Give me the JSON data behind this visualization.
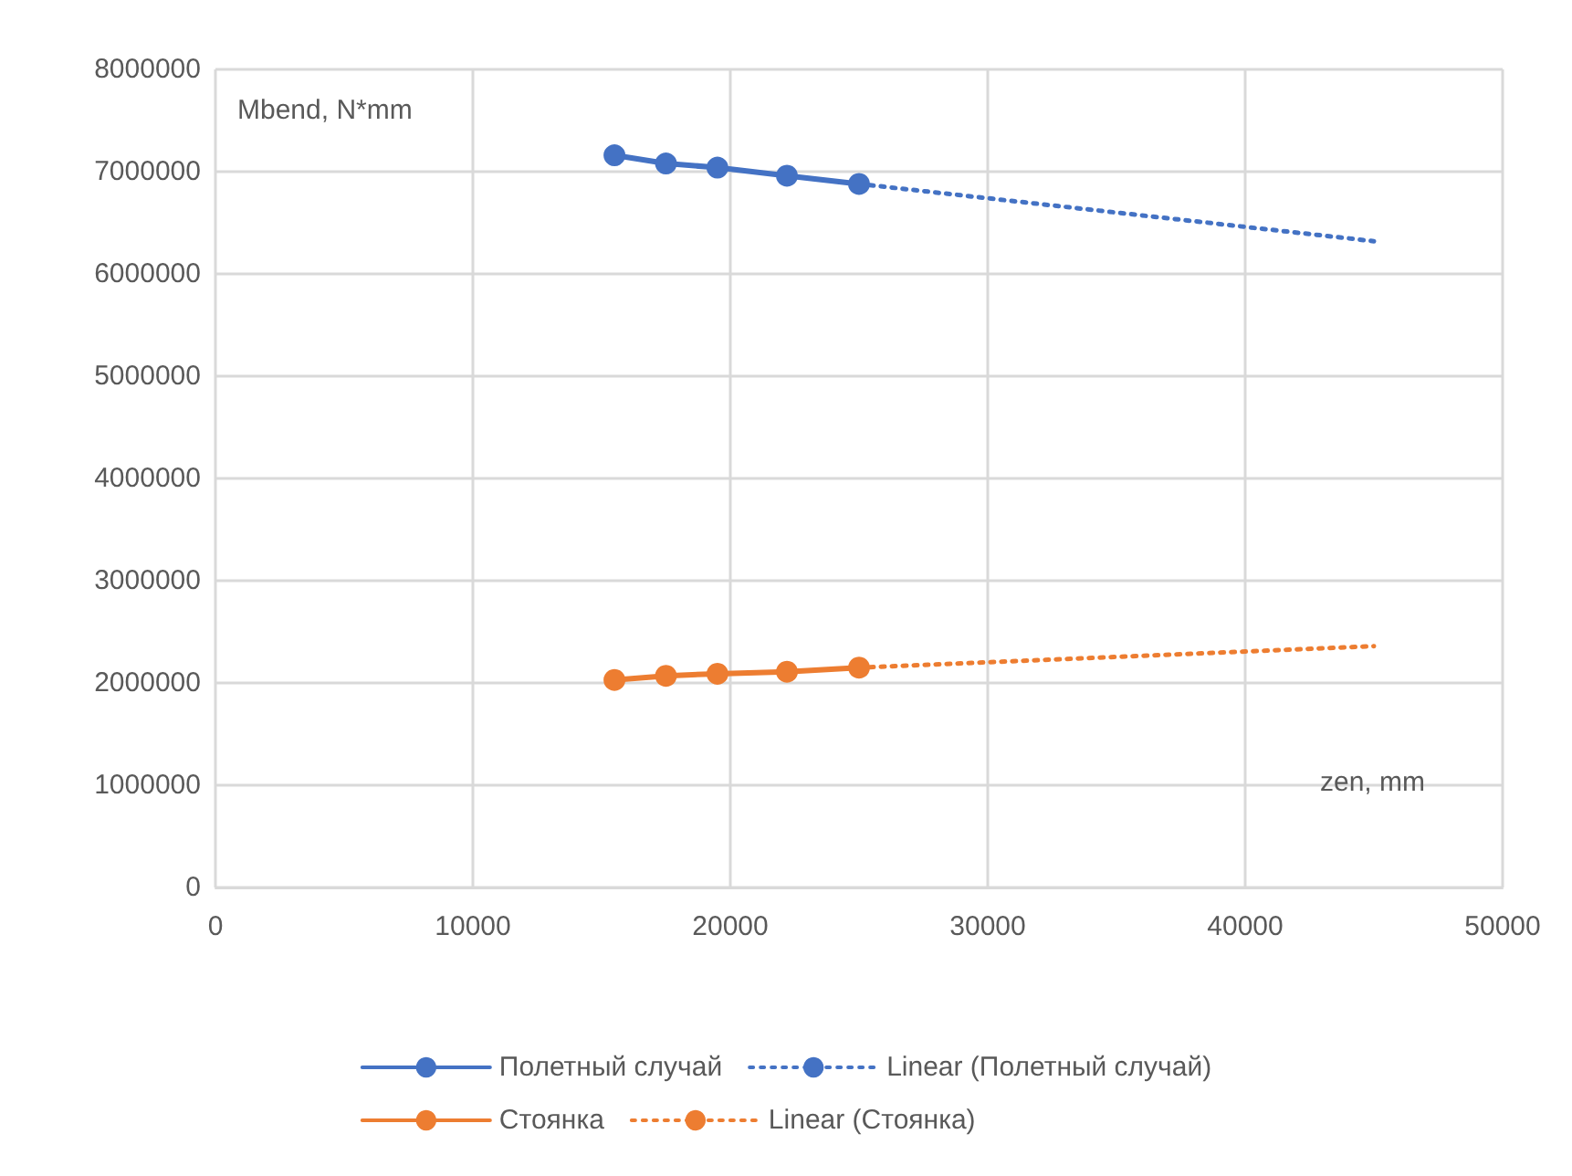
{
  "chart_data": {
    "type": "line",
    "xlabel": "zen, mm",
    "ylabel": "Mbend, N*mm",
    "xlim": [
      0,
      50000
    ],
    "xticks": [
      0,
      10000,
      20000,
      30000,
      40000,
      50000
    ],
    "ylim": [
      0,
      8000000
    ],
    "yticks": [
      0,
      1000000,
      2000000,
      3000000,
      4000000,
      5000000,
      6000000,
      7000000,
      8000000
    ],
    "grid": true,
    "legend": "bottom",
    "series": [
      {
        "name": "Полетный случай",
        "color": "#4472c4",
        "marker": "circle",
        "line_style": "solid",
        "x": [
          15500,
          17500,
          19500,
          22200,
          25000
        ],
        "values": [
          7160000,
          7080000,
          7040000,
          6960000,
          6880000
        ]
      },
      {
        "name": "Linear (Полетный случай)",
        "color": "#4472c4",
        "marker": "none",
        "line_style": "dotted",
        "x": [
          25000,
          45000
        ],
        "values": [
          6880000,
          6320000
        ]
      },
      {
        "name": "Стоянка",
        "color": "#ed7d31",
        "marker": "circle",
        "line_style": "solid",
        "x": [
          15500,
          17500,
          19500,
          22200,
          25000
        ],
        "values": [
          2030000,
          2070000,
          2090000,
          2110000,
          2150000
        ]
      },
      {
        "name": "Linear (Стоянка)",
        "color": "#ed7d31",
        "marker": "none",
        "line_style": "dotted",
        "x": [
          25000,
          45000
        ],
        "values": [
          2150000,
          2360000
        ]
      }
    ]
  }
}
